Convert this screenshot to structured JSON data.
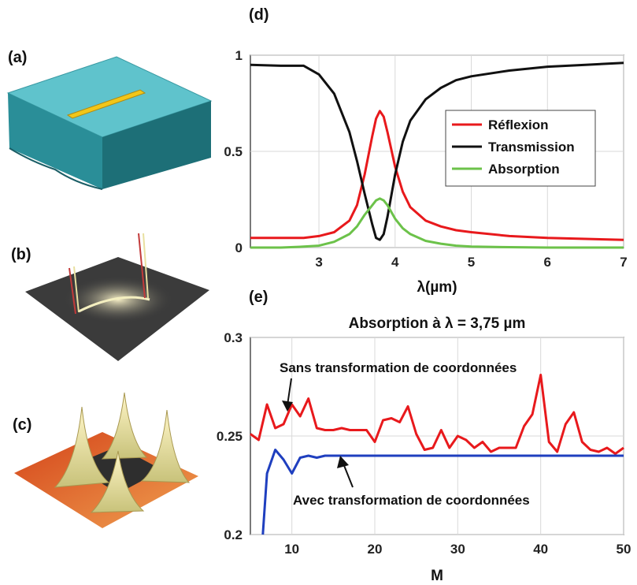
{
  "panels": {
    "a": "(a)",
    "b": "(b)",
    "c": "(c)",
    "d": "(d)",
    "e": "(e)"
  },
  "colors": {
    "red": "#e8191c",
    "black": "#111111",
    "green": "#6cc24a",
    "blue": "#1f3fbf",
    "slab": "#5fc3cc",
    "rod": "#f0c419"
  },
  "icons": {
    "a": "metal-rod-on-substrate-3d",
    "b": "field-map-3d",
    "c": "four-peak-field-map-3d"
  },
  "chart_data": [
    {
      "type": "line",
      "panel": "(d)",
      "title": "",
      "xlabel": "λ(µm)",
      "ylabel": "",
      "xlim": [
        2.1,
        7
      ],
      "ylim": [
        0,
        1
      ],
      "xticks": [
        "3",
        "4",
        "5",
        "6",
        "7"
      ],
      "yticks": [
        "0",
        "0.5",
        "1"
      ],
      "grid": true,
      "legend": "center-right",
      "series": [
        {
          "name": "Réflexion",
          "color": "#e8191c",
          "x": [
            2.1,
            2.5,
            2.8,
            3.0,
            3.2,
            3.4,
            3.5,
            3.6,
            3.7,
            3.75,
            3.8,
            3.85,
            3.9,
            4.0,
            4.1,
            4.2,
            4.4,
            4.6,
            4.8,
            5.0,
            5.5,
            6.0,
            6.5,
            7.0
          ],
          "y": [
            0.05,
            0.05,
            0.05,
            0.06,
            0.08,
            0.14,
            0.22,
            0.38,
            0.58,
            0.67,
            0.71,
            0.68,
            0.6,
            0.42,
            0.29,
            0.21,
            0.14,
            0.11,
            0.09,
            0.08,
            0.06,
            0.05,
            0.045,
            0.04
          ]
        },
        {
          "name": "Transmission",
          "color": "#111111",
          "x": [
            2.1,
            2.5,
            2.8,
            3.0,
            3.2,
            3.4,
            3.5,
            3.6,
            3.7,
            3.75,
            3.8,
            3.85,
            3.9,
            4.0,
            4.1,
            4.2,
            4.4,
            4.6,
            4.8,
            5.0,
            5.5,
            6.0,
            6.5,
            7.0
          ],
          "y": [
            0.95,
            0.945,
            0.945,
            0.9,
            0.8,
            0.6,
            0.45,
            0.28,
            0.12,
            0.05,
            0.04,
            0.07,
            0.16,
            0.38,
            0.55,
            0.66,
            0.77,
            0.83,
            0.87,
            0.89,
            0.92,
            0.94,
            0.95,
            0.96
          ]
        },
        {
          "name": "Absorption",
          "color": "#6cc24a",
          "x": [
            2.1,
            2.5,
            2.8,
            3.0,
            3.2,
            3.4,
            3.5,
            3.6,
            3.7,
            3.75,
            3.8,
            3.85,
            3.9,
            4.0,
            4.1,
            4.2,
            4.4,
            4.6,
            4.8,
            5.0,
            5.5,
            6.0,
            6.5,
            7.0
          ],
          "y": [
            0.0,
            0.0,
            0.005,
            0.01,
            0.03,
            0.07,
            0.11,
            0.17,
            0.22,
            0.245,
            0.255,
            0.245,
            0.22,
            0.15,
            0.1,
            0.07,
            0.035,
            0.02,
            0.01,
            0.005,
            0.002,
            0.0,
            0.0,
            0.0
          ]
        }
      ]
    },
    {
      "type": "line",
      "panel": "(e)",
      "title": "Absorption à λ = 3,75 µm",
      "xlabel": "M",
      "ylabel": "",
      "xlim": [
        5,
        50
      ],
      "ylim": [
        0.2,
        0.3
      ],
      "xticks": [
        "10",
        "20",
        "30",
        "40",
        "50"
      ],
      "yticks": [
        "0.2",
        "0.25",
        "0.3"
      ],
      "grid": true,
      "annotations": [
        "Sans transformation de coordonnées",
        "Avec transformation de coordonnées"
      ],
      "series": [
        {
          "color": "#e8191c",
          "x": [
            5,
            6,
            7,
            8,
            9,
            10,
            11,
            12,
            13,
            14,
            15,
            16,
            17,
            18,
            19,
            20,
            21,
            22,
            23,
            24,
            25,
            26,
            27,
            28,
            29,
            30,
            31,
            32,
            33,
            34,
            35,
            36,
            37,
            38,
            39,
            40,
            41,
            42,
            43,
            44,
            45,
            46,
            47,
            48,
            49,
            50
          ],
          "y": [
            0.251,
            0.248,
            0.266,
            0.254,
            0.256,
            0.266,
            0.26,
            0.269,
            0.254,
            0.253,
            0.253,
            0.254,
            0.253,
            0.253,
            0.253,
            0.247,
            0.258,
            0.259,
            0.257,
            0.265,
            0.251,
            0.243,
            0.244,
            0.253,
            0.244,
            0.25,
            0.248,
            0.244,
            0.247,
            0.242,
            0.244,
            0.244,
            0.244,
            0.255,
            0.261,
            0.281,
            0.247,
            0.242,
            0.256,
            0.262,
            0.247,
            0.243,
            0.242,
            0.244,
            0.241,
            0.244
          ]
        },
        {
          "color": "#1f3fbf",
          "x": [
            6.5,
            7,
            8,
            9,
            10,
            11,
            12,
            13,
            14,
            15,
            20,
            25,
            30,
            35,
            40,
            45,
            50
          ],
          "y": [
            0.2,
            0.231,
            0.243,
            0.238,
            0.231,
            0.239,
            0.24,
            0.239,
            0.24,
            0.24,
            0.24,
            0.24,
            0.24,
            0.24,
            0.24,
            0.24,
            0.24
          ]
        }
      ]
    }
  ]
}
